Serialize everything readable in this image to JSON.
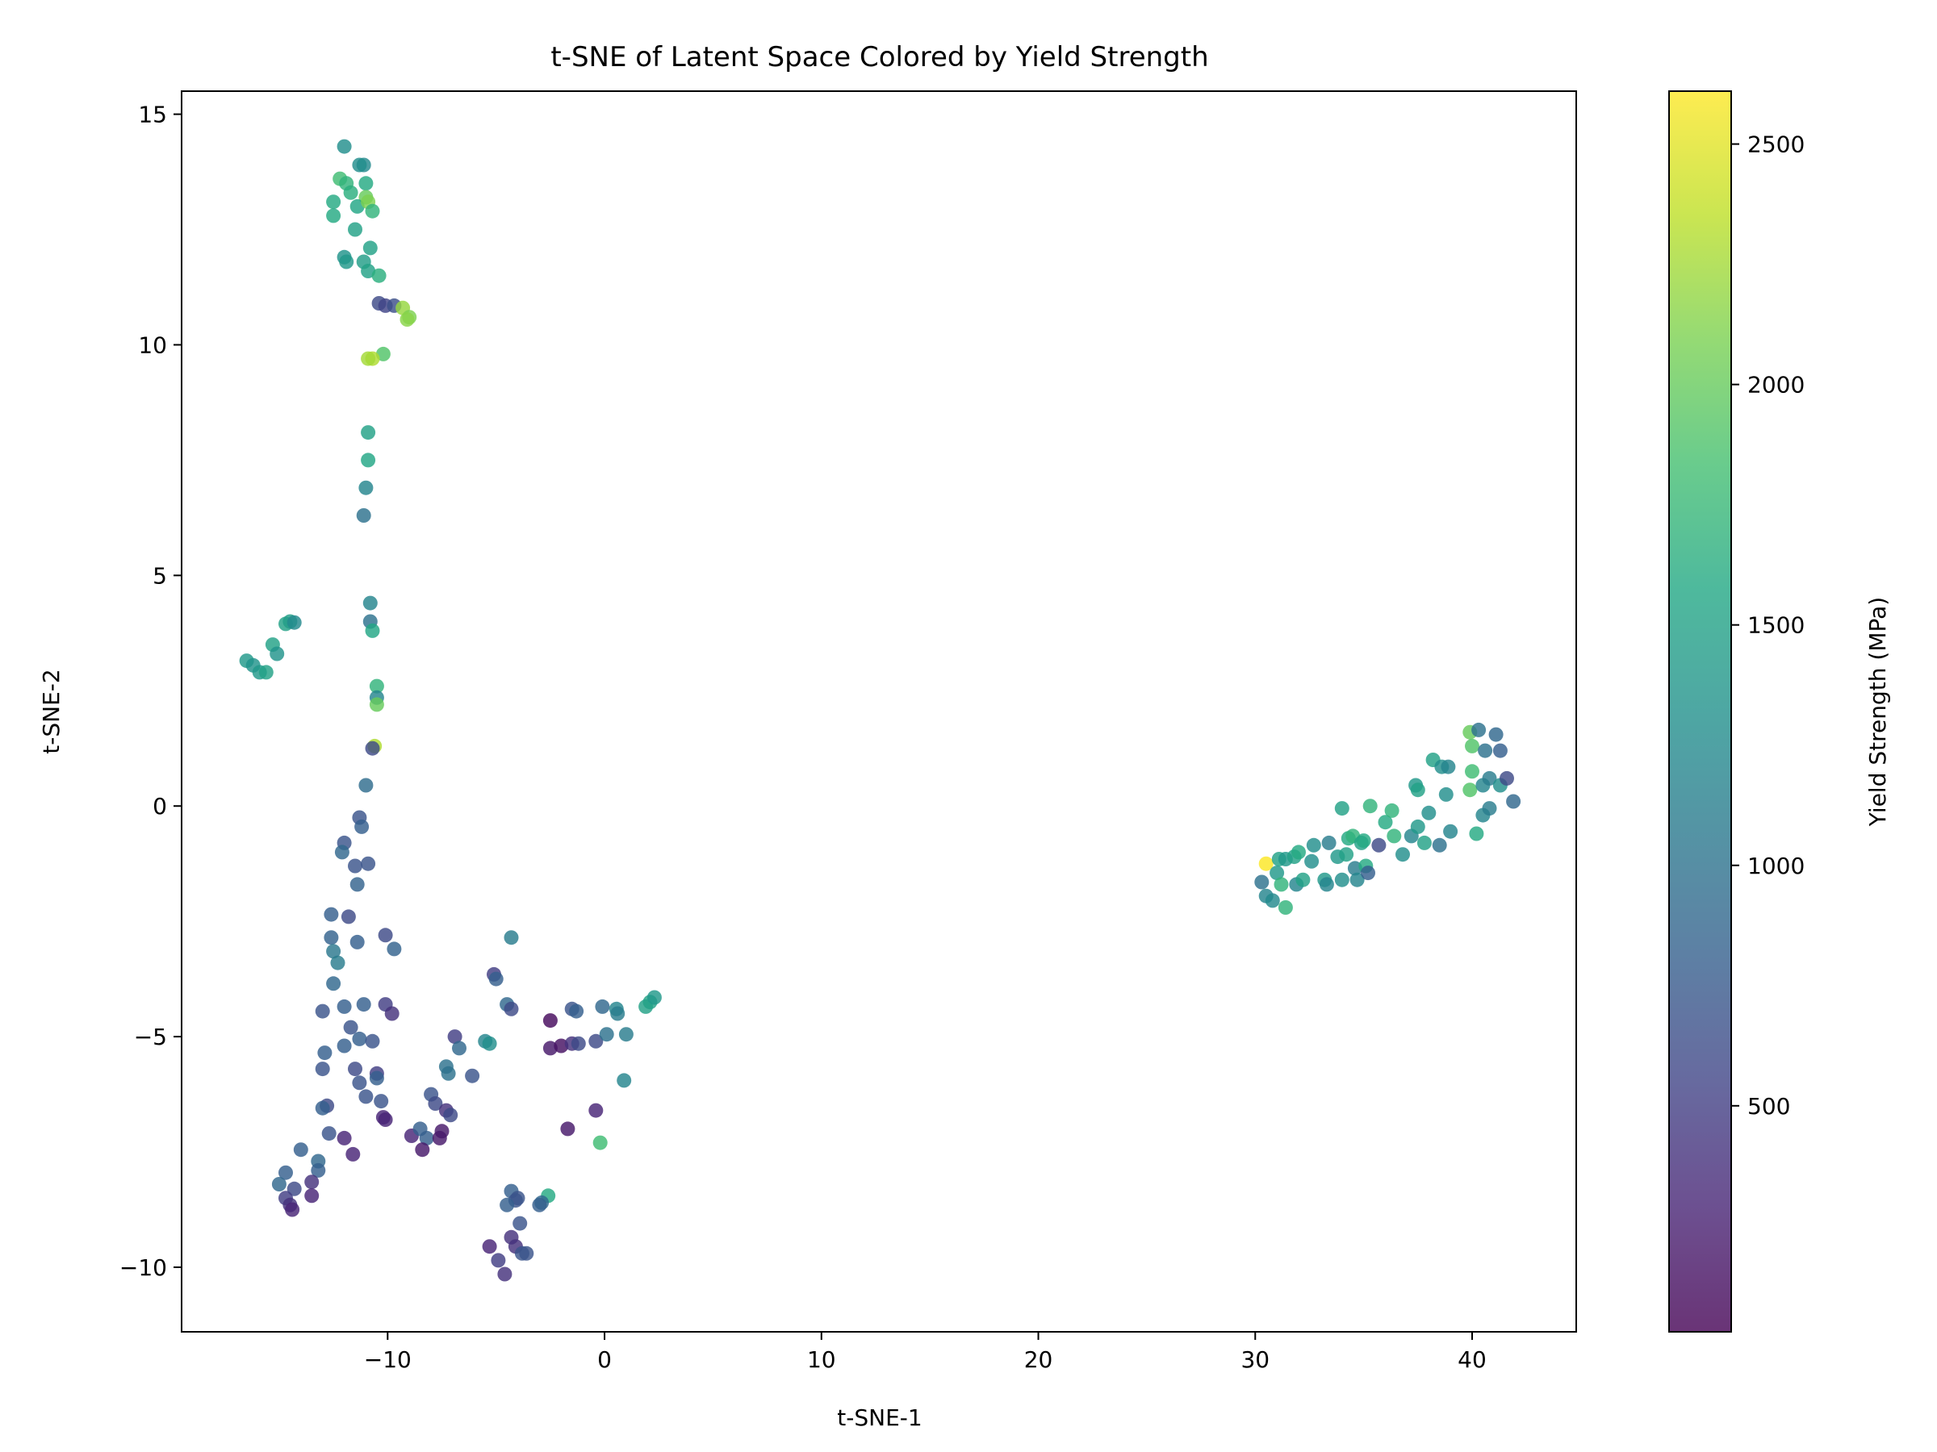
{
  "chart_data": {
    "type": "scatter",
    "title": "t-SNE of Latent Space Colored by Yield Strength",
    "xlabel": "t-SNE-1",
    "ylabel": "t-SNE-2",
    "xlim": [
      -19.5,
      44.8
    ],
    "ylim": [
      -11.4,
      15.5
    ],
    "xticks": [
      -10,
      0,
      10,
      20,
      30,
      40
    ],
    "yticks": [
      -10,
      -5,
      0,
      5,
      10,
      15
    ],
    "grid": false,
    "colorbar": {
      "label": "Yield Strength (MPa)",
      "colormap": "viridis",
      "range": [
        30,
        2610
      ],
      "ticks": [
        500,
        1000,
        1500,
        2000,
        2500
      ]
    },
    "points": [
      {
        "x": -12.0,
        "y": 14.3,
        "v": 1300
      },
      {
        "x": -11.1,
        "y": 13.9,
        "v": 1250
      },
      {
        "x": -11.3,
        "y": 13.9,
        "v": 1280
      },
      {
        "x": -12.2,
        "y": 13.6,
        "v": 1800
      },
      {
        "x": -11.9,
        "y": 13.5,
        "v": 1700
      },
      {
        "x": -11.0,
        "y": 13.5,
        "v": 1600
      },
      {
        "x": -11.7,
        "y": 13.3,
        "v": 1650
      },
      {
        "x": -11.0,
        "y": 13.2,
        "v": 2000
      },
      {
        "x": -12.5,
        "y": 13.1,
        "v": 1600
      },
      {
        "x": -11.4,
        "y": 13.0,
        "v": 1550
      },
      {
        "x": -10.9,
        "y": 13.1,
        "v": 2100
      },
      {
        "x": -10.7,
        "y": 12.9,
        "v": 1700
      },
      {
        "x": -12.5,
        "y": 12.8,
        "v": 1600
      },
      {
        "x": -11.5,
        "y": 12.5,
        "v": 1500
      },
      {
        "x": -10.8,
        "y": 12.1,
        "v": 1500
      },
      {
        "x": -12.0,
        "y": 11.9,
        "v": 1350
      },
      {
        "x": -11.9,
        "y": 11.8,
        "v": 1400
      },
      {
        "x": -11.1,
        "y": 11.8,
        "v": 1450
      },
      {
        "x": -10.9,
        "y": 11.6,
        "v": 1500
      },
      {
        "x": -10.4,
        "y": 11.5,
        "v": 1650
      },
      {
        "x": -10.4,
        "y": 10.9,
        "v": 600
      },
      {
        "x": -10.1,
        "y": 10.85,
        "v": 550
      },
      {
        "x": -9.7,
        "y": 10.85,
        "v": 650
      },
      {
        "x": -9.3,
        "y": 10.8,
        "v": 2200
      },
      {
        "x": -9.0,
        "y": 10.6,
        "v": 2100
      },
      {
        "x": -9.1,
        "y": 10.55,
        "v": 2150
      },
      {
        "x": -10.2,
        "y": 9.8,
        "v": 1900
      },
      {
        "x": -10.7,
        "y": 9.7,
        "v": 2300
      },
      {
        "x": -10.9,
        "y": 9.7,
        "v": 2250
      },
      {
        "x": -10.9,
        "y": 8.1,
        "v": 1500
      },
      {
        "x": -10.9,
        "y": 7.5,
        "v": 1550
      },
      {
        "x": -11.0,
        "y": 6.9,
        "v": 1200
      },
      {
        "x": -11.1,
        "y": 6.3,
        "v": 1000
      },
      {
        "x": -10.8,
        "y": 4.4,
        "v": 1200
      },
      {
        "x": -10.8,
        "y": 4.0,
        "v": 1000
      },
      {
        "x": -10.7,
        "y": 3.8,
        "v": 1550
      },
      {
        "x": -10.5,
        "y": 2.6,
        "v": 1700
      },
      {
        "x": -10.5,
        "y": 2.35,
        "v": 1200
      },
      {
        "x": -10.5,
        "y": 2.2,
        "v": 2000
      },
      {
        "x": -10.6,
        "y": 1.3,
        "v": 2300
      },
      {
        "x": -10.7,
        "y": 1.25,
        "v": 600
      },
      {
        "x": -11.0,
        "y": 0.45,
        "v": 950
      },
      {
        "x": -16.5,
        "y": 3.15,
        "v": 1400
      },
      {
        "x": -16.2,
        "y": 3.05,
        "v": 1350
      },
      {
        "x": -15.9,
        "y": 2.9,
        "v": 1400
      },
      {
        "x": -15.6,
        "y": 2.9,
        "v": 1500
      },
      {
        "x": -15.3,
        "y": 3.5,
        "v": 1500
      },
      {
        "x": -15.1,
        "y": 3.3,
        "v": 1350
      },
      {
        "x": -14.7,
        "y": 3.95,
        "v": 1500
      },
      {
        "x": -14.5,
        "y": 4.0,
        "v": 1450
      },
      {
        "x": -14.3,
        "y": 3.98,
        "v": 1250
      },
      {
        "x": -11.3,
        "y": -0.25,
        "v": 700
      },
      {
        "x": -11.2,
        "y": -0.45,
        "v": 800
      },
      {
        "x": -12.0,
        "y": -0.8,
        "v": 700
      },
      {
        "x": -12.1,
        "y": -1.0,
        "v": 900
      },
      {
        "x": -11.5,
        "y": -1.3,
        "v": 700
      },
      {
        "x": -10.9,
        "y": -1.25,
        "v": 700
      },
      {
        "x": -11.4,
        "y": -1.7,
        "v": 850
      },
      {
        "x": -12.6,
        "y": -2.35,
        "v": 800
      },
      {
        "x": -11.8,
        "y": -2.4,
        "v": 600
      },
      {
        "x": -12.6,
        "y": -2.85,
        "v": 850
      },
      {
        "x": -11.4,
        "y": -2.95,
        "v": 800
      },
      {
        "x": -10.1,
        "y": -2.8,
        "v": 600
      },
      {
        "x": -9.7,
        "y": -3.1,
        "v": 850
      },
      {
        "x": -12.5,
        "y": -3.15,
        "v": 1050
      },
      {
        "x": -12.3,
        "y": -3.4,
        "v": 1100
      },
      {
        "x": -12.5,
        "y": -3.85,
        "v": 900
      },
      {
        "x": -12.0,
        "y": -4.35,
        "v": 800
      },
      {
        "x": -11.1,
        "y": -4.3,
        "v": 800
      },
      {
        "x": -10.1,
        "y": -4.3,
        "v": 500
      },
      {
        "x": -9.8,
        "y": -4.5,
        "v": 400
      },
      {
        "x": -13.0,
        "y": -4.45,
        "v": 700
      },
      {
        "x": -11.7,
        "y": -4.8,
        "v": 700
      },
      {
        "x": -12.0,
        "y": -5.2,
        "v": 800
      },
      {
        "x": -11.3,
        "y": -5.05,
        "v": 800
      },
      {
        "x": -12.9,
        "y": -5.35,
        "v": 800
      },
      {
        "x": -10.7,
        "y": -5.1,
        "v": 700
      },
      {
        "x": -10.5,
        "y": -5.8,
        "v": 500
      },
      {
        "x": -10.5,
        "y": -5.9,
        "v": 800
      },
      {
        "x": -13.0,
        "y": -5.7,
        "v": 700
      },
      {
        "x": -11.5,
        "y": -5.7,
        "v": 600
      },
      {
        "x": -11.3,
        "y": -6.0,
        "v": 700
      },
      {
        "x": -11.0,
        "y": -6.3,
        "v": 700
      },
      {
        "x": -12.8,
        "y": -6.5,
        "v": 600
      },
      {
        "x": -13.0,
        "y": -6.55,
        "v": 800
      },
      {
        "x": -10.3,
        "y": -6.4,
        "v": 700
      },
      {
        "x": -10.1,
        "y": -6.8,
        "v": 300
      },
      {
        "x": -10.2,
        "y": -6.75,
        "v": 300
      },
      {
        "x": -12.7,
        "y": -7.1,
        "v": 700
      },
      {
        "x": -12.0,
        "y": -7.2,
        "v": 300
      },
      {
        "x": -11.6,
        "y": -7.55,
        "v": 300
      },
      {
        "x": -14.0,
        "y": -7.45,
        "v": 800
      },
      {
        "x": -13.2,
        "y": -7.7,
        "v": 900
      },
      {
        "x": -13.2,
        "y": -7.9,
        "v": 800
      },
      {
        "x": -14.7,
        "y": -7.95,
        "v": 800
      },
      {
        "x": -15.0,
        "y": -8.2,
        "v": 900
      },
      {
        "x": -14.3,
        "y": -8.3,
        "v": 600
      },
      {
        "x": -13.5,
        "y": -8.15,
        "v": 400
      },
      {
        "x": -14.7,
        "y": -8.5,
        "v": 500
      },
      {
        "x": -13.5,
        "y": -8.45,
        "v": 300
      },
      {
        "x": -14.5,
        "y": -8.65,
        "v": 400
      },
      {
        "x": -14.4,
        "y": -8.75,
        "v": 300
      },
      {
        "x": -8.0,
        "y": -6.25,
        "v": 700
      },
      {
        "x": -7.8,
        "y": -6.45,
        "v": 600
      },
      {
        "x": -7.3,
        "y": -6.6,
        "v": 400
      },
      {
        "x": -7.1,
        "y": -6.7,
        "v": 600
      },
      {
        "x": -8.9,
        "y": -7.15,
        "v": 300
      },
      {
        "x": -8.5,
        "y": -7.0,
        "v": 800
      },
      {
        "x": -8.2,
        "y": -7.2,
        "v": 800
      },
      {
        "x": -7.5,
        "y": -7.05,
        "v": 200
      },
      {
        "x": -7.6,
        "y": -7.2,
        "v": 200
      },
      {
        "x": -8.4,
        "y": -7.45,
        "v": 200
      },
      {
        "x": -7.3,
        "y": -5.65,
        "v": 1000
      },
      {
        "x": -7.2,
        "y": -5.8,
        "v": 1000
      },
      {
        "x": -6.9,
        "y": -5.0,
        "v": 500
      },
      {
        "x": -6.7,
        "y": -5.25,
        "v": 900
      },
      {
        "x": -6.1,
        "y": -5.85,
        "v": 700
      },
      {
        "x": -5.5,
        "y": -5.1,
        "v": 1200
      },
      {
        "x": -5.3,
        "y": -5.15,
        "v": 1300
      },
      {
        "x": -5.1,
        "y": -3.65,
        "v": 500
      },
      {
        "x": -5.0,
        "y": -3.75,
        "v": 800
      },
      {
        "x": -4.5,
        "y": -4.3,
        "v": 900
      },
      {
        "x": -4.3,
        "y": -4.4,
        "v": 600
      },
      {
        "x": -4.3,
        "y": -2.85,
        "v": 1100
      },
      {
        "x": -2.5,
        "y": -4.65,
        "v": 100
      },
      {
        "x": -2.5,
        "y": -5.25,
        "v": 200
      },
      {
        "x": -2.0,
        "y": -5.2,
        "v": 150
      },
      {
        "x": -1.5,
        "y": -4.4,
        "v": 700
      },
      {
        "x": -1.3,
        "y": -4.45,
        "v": 800
      },
      {
        "x": -1.5,
        "y": -5.15,
        "v": 400
      },
      {
        "x": -1.2,
        "y": -5.15,
        "v": 600
      },
      {
        "x": -0.4,
        "y": -5.1,
        "v": 600
      },
      {
        "x": -0.1,
        "y": -4.35,
        "v": 900
      },
      {
        "x": 0.1,
        "y": -4.95,
        "v": 1000
      },
      {
        "x": 0.55,
        "y": -4.4,
        "v": 1200
      },
      {
        "x": 0.6,
        "y": -4.5,
        "v": 1100
      },
      {
        "x": 1.0,
        "y": -4.95,
        "v": 1100
      },
      {
        "x": 0.9,
        "y": -5.95,
        "v": 1200
      },
      {
        "x": 1.9,
        "y": -4.35,
        "v": 1500
      },
      {
        "x": 2.1,
        "y": -4.25,
        "v": 1500
      },
      {
        "x": 2.3,
        "y": -4.15,
        "v": 1400
      },
      {
        "x": -0.4,
        "y": -6.6,
        "v": 300
      },
      {
        "x": -1.7,
        "y": -7.0,
        "v": 200
      },
      {
        "x": -0.2,
        "y": -7.3,
        "v": 1800
      },
      {
        "x": -2.6,
        "y": -8.45,
        "v": 1600
      },
      {
        "x": -2.9,
        "y": -8.6,
        "v": 900
      },
      {
        "x": -3.0,
        "y": -8.65,
        "v": 800
      },
      {
        "x": -4.3,
        "y": -8.35,
        "v": 800
      },
      {
        "x": -4.0,
        "y": -8.5,
        "v": 700
      },
      {
        "x": -4.1,
        "y": -8.55,
        "v": 700
      },
      {
        "x": -4.5,
        "y": -8.65,
        "v": 800
      },
      {
        "x": -3.9,
        "y": -9.05,
        "v": 700
      },
      {
        "x": -4.3,
        "y": -9.35,
        "v": 400
      },
      {
        "x": -5.3,
        "y": -9.55,
        "v": 300
      },
      {
        "x": -4.1,
        "y": -9.55,
        "v": 400
      },
      {
        "x": -3.8,
        "y": -9.7,
        "v": 700
      },
      {
        "x": -3.6,
        "y": -9.7,
        "v": 700
      },
      {
        "x": -4.9,
        "y": -9.85,
        "v": 500
      },
      {
        "x": -4.6,
        "y": -10.15,
        "v": 400
      },
      {
        "x": 30.5,
        "y": -1.25,
        "v": 2600
      },
      {
        "x": 31.1,
        "y": -1.15,
        "v": 1500
      },
      {
        "x": 31.4,
        "y": -1.15,
        "v": 1400
      },
      {
        "x": 31.8,
        "y": -1.1,
        "v": 1500
      },
      {
        "x": 32.0,
        "y": -1.0,
        "v": 1600
      },
      {
        "x": 30.3,
        "y": -1.65,
        "v": 1000
      },
      {
        "x": 30.5,
        "y": -1.95,
        "v": 1200
      },
      {
        "x": 30.8,
        "y": -2.05,
        "v": 1250
      },
      {
        "x": 31.0,
        "y": -1.45,
        "v": 1400
      },
      {
        "x": 31.2,
        "y": -1.7,
        "v": 1700
      },
      {
        "x": 31.4,
        "y": -2.2,
        "v": 1700
      },
      {
        "x": 31.9,
        "y": -1.7,
        "v": 1200
      },
      {
        "x": 32.2,
        "y": -1.6,
        "v": 1500
      },
      {
        "x": 32.6,
        "y": -1.2,
        "v": 1300
      },
      {
        "x": 32.7,
        "y": -0.85,
        "v": 1300
      },
      {
        "x": 33.2,
        "y": -1.6,
        "v": 1400
      },
      {
        "x": 33.3,
        "y": -1.7,
        "v": 1200
      },
      {
        "x": 33.4,
        "y": -0.8,
        "v": 1100
      },
      {
        "x": 33.8,
        "y": -1.1,
        "v": 1400
      },
      {
        "x": 34.0,
        "y": -1.6,
        "v": 1300
      },
      {
        "x": 34.2,
        "y": -1.05,
        "v": 1500
      },
      {
        "x": 34.3,
        "y": -0.7,
        "v": 1600
      },
      {
        "x": 34.5,
        "y": -0.65,
        "v": 1700
      },
      {
        "x": 34.6,
        "y": -1.35,
        "v": 1100
      },
      {
        "x": 34.7,
        "y": -1.6,
        "v": 1200
      },
      {
        "x": 34.9,
        "y": -0.8,
        "v": 1500
      },
      {
        "x": 35.0,
        "y": -0.75,
        "v": 1600
      },
      {
        "x": 35.1,
        "y": -1.3,
        "v": 1600
      },
      {
        "x": 35.2,
        "y": -1.45,
        "v": 800
      },
      {
        "x": 35.7,
        "y": -0.85,
        "v": 600
      },
      {
        "x": 34.0,
        "y": -0.05,
        "v": 1500
      },
      {
        "x": 35.3,
        "y": 0.0,
        "v": 1700
      },
      {
        "x": 36.0,
        "y": -0.35,
        "v": 1600
      },
      {
        "x": 36.3,
        "y": -0.1,
        "v": 1700
      },
      {
        "x": 36.4,
        "y": -0.65,
        "v": 1700
      },
      {
        "x": 36.8,
        "y": -1.05,
        "v": 1300
      },
      {
        "x": 37.2,
        "y": -0.65,
        "v": 1200
      },
      {
        "x": 37.5,
        "y": -0.45,
        "v": 1400
      },
      {
        "x": 37.4,
        "y": 0.45,
        "v": 1400
      },
      {
        "x": 37.5,
        "y": 0.35,
        "v": 1500
      },
      {
        "x": 37.8,
        "y": -0.8,
        "v": 1500
      },
      {
        "x": 38.0,
        "y": -0.15,
        "v": 1300
      },
      {
        "x": 38.2,
        "y": 1.0,
        "v": 1500
      },
      {
        "x": 38.5,
        "y": -0.85,
        "v": 1000
      },
      {
        "x": 38.6,
        "y": 0.85,
        "v": 1300
      },
      {
        "x": 38.9,
        "y": 0.85,
        "v": 1200
      },
      {
        "x": 38.8,
        "y": 0.25,
        "v": 1300
      },
      {
        "x": 39.0,
        "y": -0.55,
        "v": 1200
      },
      {
        "x": 39.9,
        "y": 1.6,
        "v": 2000
      },
      {
        "x": 40.0,
        "y": 1.3,
        "v": 1900
      },
      {
        "x": 40.3,
        "y": 1.65,
        "v": 1000
      },
      {
        "x": 40.0,
        "y": 0.75,
        "v": 1800
      },
      {
        "x": 39.9,
        "y": 0.35,
        "v": 1900
      },
      {
        "x": 40.5,
        "y": 0.45,
        "v": 1200
      },
      {
        "x": 40.6,
        "y": 1.2,
        "v": 1000
      },
      {
        "x": 40.8,
        "y": 0.6,
        "v": 1100
      },
      {
        "x": 40.2,
        "y": -0.6,
        "v": 1600
      },
      {
        "x": 40.5,
        "y": -0.2,
        "v": 1200
      },
      {
        "x": 40.8,
        "y": -0.05,
        "v": 1100
      },
      {
        "x": 41.1,
        "y": 1.55,
        "v": 900
      },
      {
        "x": 41.3,
        "y": 1.2,
        "v": 800
      },
      {
        "x": 41.3,
        "y": 0.45,
        "v": 1300
      },
      {
        "x": 41.6,
        "y": 0.6,
        "v": 600
      },
      {
        "x": 41.9,
        "y": 0.1,
        "v": 900
      }
    ]
  }
}
